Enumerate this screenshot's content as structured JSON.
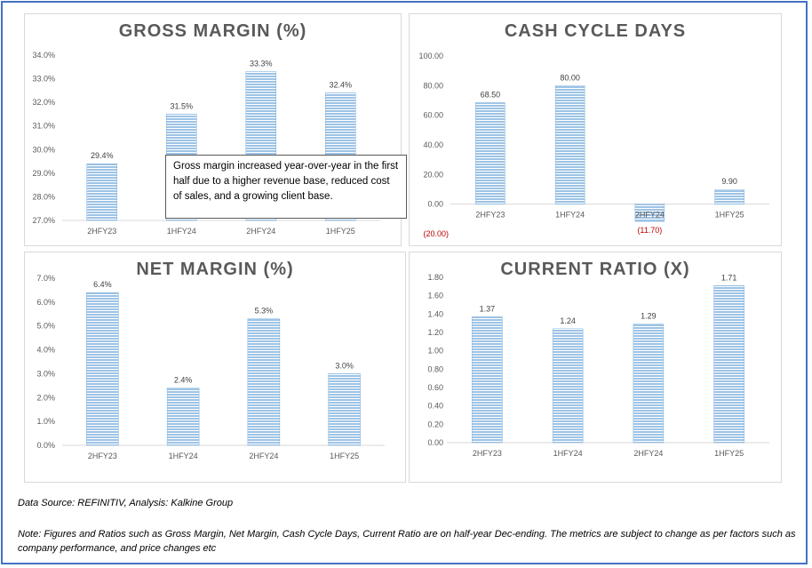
{
  "colors": {
    "bar": "#9dc3e6",
    "bar_stripe": "#ffffff",
    "axis": "#d9d9d9",
    "text": "#595959",
    "neg_label": "#c00000",
    "frame": "#4472c4"
  },
  "callout_text": "Gross margin increased year-over-year in the first half due to a higher revenue base, reduced cost of sales, and a growing client base.",
  "footer": {
    "source": "Data Source: REFINITIV, Analysis: Kalkine Group",
    "note": "Note: Figures and Ratios such as Gross Margin, Net Margin, Cash Cycle Days, Current Ratio  are on half-year Dec-ending. The metrics are subject to change as per factors such as company performance, and price changes etc"
  },
  "chart_data": [
    {
      "type": "bar",
      "title": "GROSS MARGIN (%)",
      "categories": [
        "2HFY23",
        "1HFY24",
        "2HFY24",
        "1HFY25"
      ],
      "values": [
        29.4,
        31.5,
        33.3,
        32.4
      ],
      "data_labels": [
        "29.4%",
        "31.5%",
        "33.3%",
        "32.4%"
      ],
      "ylim": [
        27.0,
        34.0
      ],
      "yticks": [
        27,
        28,
        29,
        30,
        31,
        32,
        33,
        34
      ],
      "ytick_labels": [
        "27.0%",
        "28.0%",
        "29.0%",
        "30.0%",
        "31.0%",
        "32.0%",
        "33.0%",
        "34.0%"
      ],
      "grid": false
    },
    {
      "type": "bar",
      "title": "CASH CYCLE DAYS",
      "categories": [
        "2HFY23",
        "1HFY24",
        "2HFY24",
        "1HFY25"
      ],
      "values": [
        68.5,
        80.0,
        -11.7,
        9.9
      ],
      "data_labels": [
        "68.50",
        "80.00",
        "(11.70)",
        "9.90"
      ],
      "ylim": [
        -20.0,
        100.0
      ],
      "yticks": [
        -20,
        0,
        20,
        40,
        60,
        80,
        100
      ],
      "ytick_labels": [
        "(20.00)",
        "0.00",
        "20.00",
        "40.00",
        "60.00",
        "80.00",
        "100.00"
      ],
      "grid": false
    },
    {
      "type": "bar",
      "title": "NET MARGIN (%)",
      "categories": [
        "2HFY23",
        "1HFY24",
        "2HFY24",
        "1HFY25"
      ],
      "values": [
        6.4,
        2.4,
        5.3,
        3.0
      ],
      "data_labels": [
        "6.4%",
        "2.4%",
        "5.3%",
        "3.0%"
      ],
      "ylim": [
        0.0,
        7.0
      ],
      "yticks": [
        0,
        1,
        2,
        3,
        4,
        5,
        6,
        7
      ],
      "ytick_labels": [
        "0.0%",
        "1.0%",
        "2.0%",
        "3.0%",
        "4.0%",
        "5.0%",
        "6.0%",
        "7.0%"
      ],
      "grid": false
    },
    {
      "type": "bar",
      "title": "CURRENT RATIO (X)",
      "categories": [
        "2HFY23",
        "1HFY24",
        "2HFY24",
        "1HFY25"
      ],
      "values": [
        1.37,
        1.24,
        1.29,
        1.71
      ],
      "data_labels": [
        "1.37",
        "1.24",
        "1.29",
        "1.71"
      ],
      "ylim": [
        0.0,
        1.8
      ],
      "yticks": [
        0,
        0.2,
        0.4,
        0.6,
        0.8,
        1.0,
        1.2,
        1.4,
        1.6,
        1.8
      ],
      "ytick_labels": [
        "0.00",
        "0.20",
        "0.40",
        "0.60",
        "0.80",
        "1.00",
        "1.20",
        "1.40",
        "1.60",
        "1.80"
      ],
      "grid": false
    }
  ]
}
